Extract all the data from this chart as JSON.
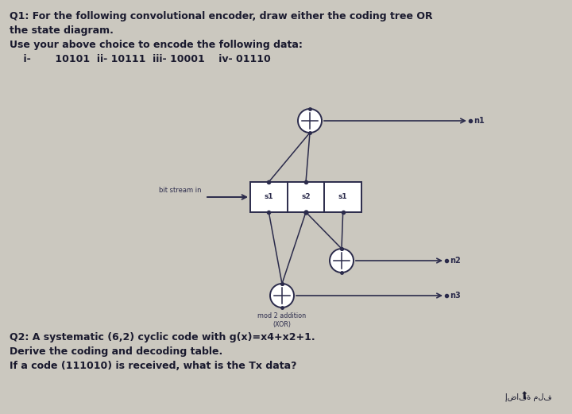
{
  "bg_color": "#cbc8bf",
  "title_lines": [
    "Q1: For the following convolutional encoder, draw either the coding tree OR",
    "the state diagram.",
    "Use your above choice to encode the following data:",
    "    i-       10101  ii- 10111  iii- 10001    iv- 01110"
  ],
  "q2_lines": [
    "Q2: A systematic (6,2) cyclic code with g(x)=x4+x2+1.",
    "Derive the coding and decoding table.",
    "If a code (111010) is received, what is the Tx data?"
  ],
  "bottom_text": "إضافة ملف",
  "box_labels": [
    "s1",
    "s2",
    "s1"
  ],
  "output_labels": [
    "n1",
    "n2",
    "n3"
  ],
  "xor_label": "mod 2 addition\n(XOR)",
  "bit_stream_label": "bit stream in",
  "text_color": "#1a1a2e",
  "diagram_color": "#2b2b4b",
  "font_size_title": 9.0,
  "font_size_q2": 9.0,
  "font_size_labels": 6.0,
  "font_size_bottom": 7.0
}
